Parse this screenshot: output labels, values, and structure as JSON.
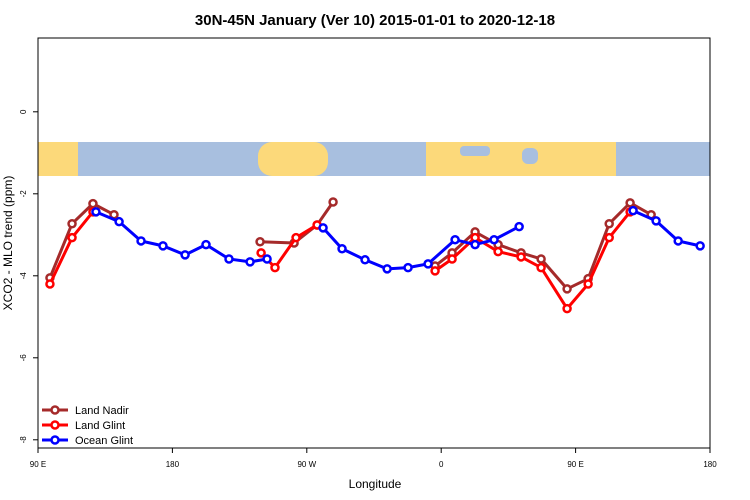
{
  "chart_data": {
    "type": "line",
    "title": "30N-45N January (Ver 10)   2015-01-01 to 2020-12-18",
    "x_label": "Longitude",
    "y_label": "XCO2 - MLO trend (ppm)",
    "xlim": [
      90,
      540
    ],
    "ylim": [
      -8.2,
      1.8
    ],
    "xticks": [
      {
        "value": 90,
        "label": "90 E"
      },
      180,
      {
        "value": 270,
        "label": "90 W"
      },
      {
        "value": 360,
        "label": "0"
      },
      {
        "value": 450,
        "label": "90 E"
      },
      {
        "value": 540,
        "label": "180"
      }
    ],
    "yticks": [
      -8,
      -6,
      -4,
      -2,
      0
    ],
    "legend": "bottom-left",
    "series": [
      {
        "name": "Land Nadir",
        "color": "#a52a2a",
        "x": [
          98,
          112.8,
          126.8,
          140.9,
          null,
          238.7,
          261.5,
          276.9,
          287.6,
          null,
          355.9,
          367.3,
          382.7,
          398.1,
          413.5,
          426.9,
          444.3,
          458.4,
          472.5,
          486.5,
          500.6
        ],
        "values": [
          -4.05,
          -2.73,
          -2.24,
          -2.51,
          null,
          -3.17,
          -3.2,
          -2.76,
          -2.2,
          null,
          -3.76,
          -3.44,
          -2.93,
          -3.24,
          -3.44,
          -3.59,
          -4.32,
          -4.07,
          -2.73,
          -2.22,
          -2.51
        ]
      },
      {
        "name": "Land Glint",
        "color": "#ff0000",
        "x": [
          98,
          112.8,
          126.8,
          null,
          239.4,
          248.7,
          262.8,
          276.9,
          null,
          355.9,
          367.3,
          382.7,
          398.1,
          413.5,
          426.9,
          444.3,
          458.4,
          472.5,
          486.5
        ],
        "values": [
          -4.2,
          -3.07,
          -2.44,
          null,
          -3.44,
          -3.8,
          -3.07,
          -2.76,
          null,
          -3.88,
          -3.59,
          -3.07,
          -3.41,
          -3.54,
          -3.8,
          -4.8,
          -4.2,
          -3.07,
          -2.44
        ]
      },
      {
        "name": "Ocean Glint",
        "color": "#0000ff",
        "x": [
          128.8,
          144.3,
          159,
          173.7,
          188.5,
          202.5,
          217.9,
          232,
          243.4,
          null,
          280.9,
          293.6,
          309,
          323.8,
          337.8,
          351.2,
          369.3,
          382.7,
          395.4,
          412.2,
          null,
          488.5,
          503.9,
          518.7,
          533.4
        ],
        "values": [
          -2.44,
          -2.68,
          -3.15,
          -3.27,
          -3.49,
          -3.24,
          -3.59,
          -3.66,
          -3.59,
          null,
          -2.83,
          -3.34,
          -3.61,
          -3.83,
          -3.8,
          -3.71,
          -3.12,
          -3.24,
          -3.12,
          -2.8,
          null,
          -2.41,
          -2.66,
          -3.15,
          -3.27
        ]
      }
    ]
  }
}
